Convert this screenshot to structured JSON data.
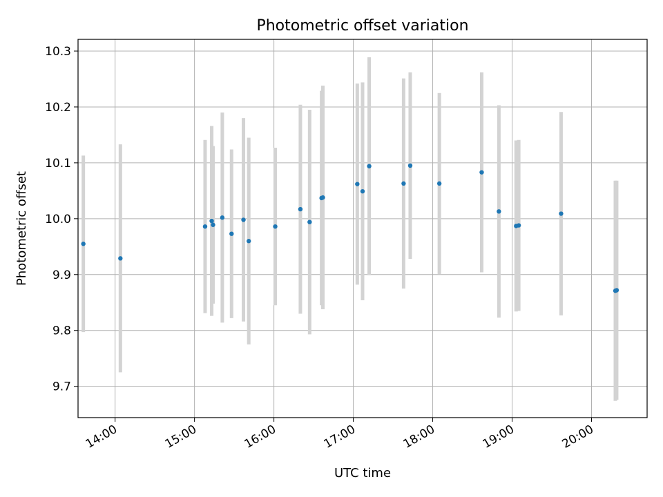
{
  "chart_data": {
    "type": "scatter",
    "title": "Photometric offset variation",
    "xlabel": "UTC time",
    "ylabel": "Photometric offset",
    "x_tick_labels": [
      "14:00",
      "15:00",
      "16:00",
      "17:00",
      "18:00",
      "19:00",
      "20:00"
    ],
    "y_tick_labels": [
      "9.7",
      "9.8",
      "9.9",
      "10.0",
      "10.1",
      "10.2",
      "10.3"
    ],
    "xlim": [
      "13:32",
      "20:42"
    ],
    "ylim": [
      9.644,
      10.321
    ],
    "grid": true,
    "series": [
      {
        "marker_color": "#1f77b4",
        "error_bar_color": "#d3d3d3",
        "points": [
          {
            "x": "13:36",
            "y": 9.955,
            "err": 0.158
          },
          {
            "x": "14:04",
            "y": 9.929,
            "err": 0.204
          },
          {
            "x": "15:08",
            "y": 9.986,
            "err": 0.155
          },
          {
            "x": "15:13",
            "y": 9.996,
            "err": 0.17
          },
          {
            "x": "15:14",
            "y": 9.989,
            "err": 0.141
          },
          {
            "x": "15:21",
            "y": 10.002,
            "err": 0.188
          },
          {
            "x": "15:28",
            "y": 9.973,
            "err": 0.151
          },
          {
            "x": "15:37",
            "y": 9.998,
            "err": 0.182
          },
          {
            "x": "15:41",
            "y": 9.96,
            "err": 0.185
          },
          {
            "x": "16:01",
            "y": 9.986,
            "err": 0.141
          },
          {
            "x": "16:20",
            "y": 10.017,
            "err": 0.187
          },
          {
            "x": "16:27",
            "y": 9.994,
            "err": 0.201
          },
          {
            "x": "16:36",
            "y": 10.037,
            "err": 0.192
          },
          {
            "x": "16:37",
            "y": 10.038,
            "err": 0.2
          },
          {
            "x": "17:03",
            "y": 10.062,
            "err": 0.18
          },
          {
            "x": "17:07",
            "y": 10.049,
            "err": 0.195
          },
          {
            "x": "17:12",
            "y": 10.094,
            "err": 0.195
          },
          {
            "x": "17:38",
            "y": 10.063,
            "err": 0.188
          },
          {
            "x": "17:43",
            "y": 10.095,
            "err": 0.167
          },
          {
            "x": "18:05",
            "y": 10.063,
            "err": 0.162
          },
          {
            "x": "18:37",
            "y": 10.083,
            "err": 0.179
          },
          {
            "x": "18:50",
            "y": 10.013,
            "err": 0.19
          },
          {
            "x": "19:03",
            "y": 9.987,
            "err": 0.153
          },
          {
            "x": "19:05",
            "y": 9.988,
            "err": 0.153
          },
          {
            "x": "19:37",
            "y": 10.009,
            "err": 0.182
          },
          {
            "x": "20:18",
            "y": 9.871,
            "err": 0.197
          },
          {
            "x": "20:19",
            "y": 9.872,
            "err": 0.196
          }
        ]
      }
    ]
  }
}
